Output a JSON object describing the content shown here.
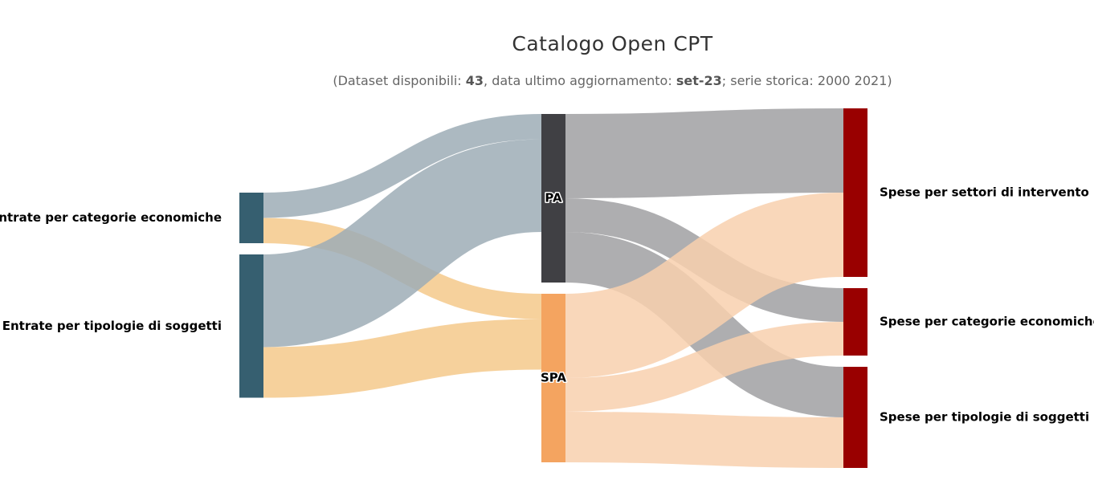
{
  "title": "Catalogo Open CPT",
  "subtitle": {
    "prefix": "(Dataset disponibili: ",
    "count": "43",
    "middle": ", data ultimo aggiornamento: ",
    "update": "set-23",
    "suffix": "; serie storica: 2000  2021)"
  },
  "colors": {
    "entrate": "#365f70",
    "pa": "#404044",
    "spa": "#f4a460",
    "spese": "#990000",
    "link_entrate_pa": "#9dadb6",
    "link_entrate_spa": "#f5c98b",
    "link_pa": "#a0a0a2",
    "link_spa": "#f8d0ae"
  },
  "chart_data": {
    "type": "sankey",
    "nodes": [
      {
        "id": "ent_cat",
        "label": "Entrate per categorie economiche",
        "column": 0,
        "color_key": "entrate"
      },
      {
        "id": "ent_tip",
        "label": "Entrate per tipologie di soggetti",
        "column": 0,
        "color_key": "entrate"
      },
      {
        "id": "pa",
        "label": "PA",
        "column": 1,
        "color_key": "pa"
      },
      {
        "id": "spa",
        "label": "SPA",
        "column": 1,
        "color_key": "spa"
      },
      {
        "id": "sp_set",
        "label": "Spese per settori di intervento",
        "column": 2,
        "color_key": "spese"
      },
      {
        "id": "sp_cat",
        "label": "Spese per categorie economiche",
        "column": 2,
        "color_key": "spese"
      },
      {
        "id": "sp_tip",
        "label": "Spese per tipologie di soggetti",
        "column": 2,
        "color_key": "spese"
      }
    ],
    "links": [
      {
        "source": "ent_cat",
        "target": "pa",
        "value": 3,
        "color_key": "link_entrate_pa"
      },
      {
        "source": "ent_cat",
        "target": "spa",
        "value": 3,
        "color_key": "link_entrate_spa"
      },
      {
        "source": "ent_tip",
        "target": "pa",
        "value": 11,
        "color_key": "link_entrate_pa"
      },
      {
        "source": "ent_tip",
        "target": "spa",
        "value": 6,
        "color_key": "link_entrate_spa"
      },
      {
        "source": "pa",
        "target": "sp_set",
        "value": 10,
        "color_key": "link_pa"
      },
      {
        "source": "pa",
        "target": "sp_cat",
        "value": 4,
        "color_key": "link_pa"
      },
      {
        "source": "pa",
        "target": "sp_tip",
        "value": 6,
        "color_key": "link_pa"
      },
      {
        "source": "spa",
        "target": "sp_set",
        "value": 10,
        "color_key": "link_spa"
      },
      {
        "source": "spa",
        "target": "sp_cat",
        "value": 4,
        "color_key": "link_spa"
      },
      {
        "source": "spa",
        "target": "sp_tip",
        "value": 6,
        "color_key": "link_spa"
      }
    ]
  }
}
